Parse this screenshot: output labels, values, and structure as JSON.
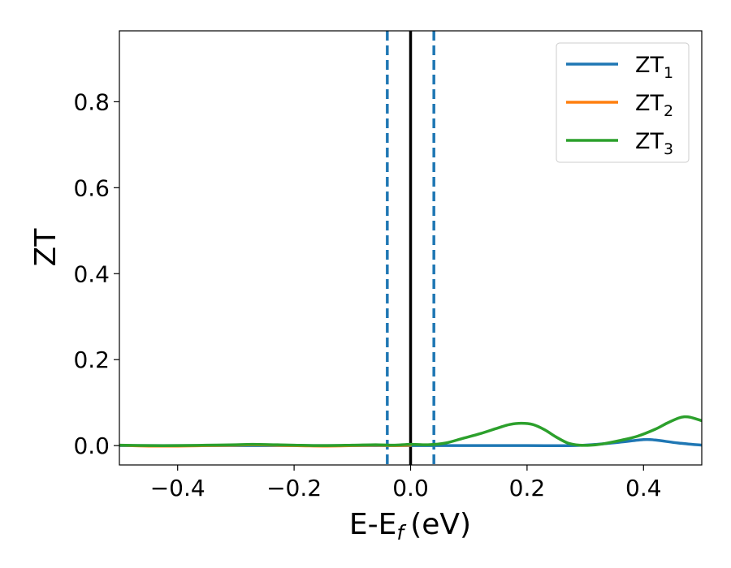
{
  "chart_data": {
    "type": "line",
    "xlabel": "E-E",
    "xlabel_sub": "f",
    "xlabel_unit": "(eV)",
    "ylabel": "ZT",
    "xlim": [
      -0.5,
      0.5
    ],
    "ylim": [
      -0.045,
      0.965
    ],
    "xticks": [
      -0.4,
      -0.2,
      0.0,
      0.2,
      0.4
    ],
    "xtick_labels": [
      "−0.4",
      "−0.2",
      "0.0",
      "0.2",
      "0.4"
    ],
    "yticks": [
      0.0,
      0.2,
      0.4,
      0.6,
      0.8
    ],
    "ytick_labels": [
      "0.0",
      "0.2",
      "0.4",
      "0.6",
      "0.8"
    ],
    "grid": false,
    "legend_position": "top-right",
    "vertical_lines": [
      {
        "x": -0.04,
        "style": "dashed",
        "color": "#1f77b4"
      },
      {
        "x": 0.0,
        "style": "solid",
        "color": "#000000"
      },
      {
        "x": 0.04,
        "style": "dashed",
        "color": "#1f77b4"
      }
    ],
    "series": [
      {
        "name": "ZT",
        "name_sub": "1",
        "color": "#1f77b4",
        "x": [
          -0.5,
          -0.4,
          -0.3,
          -0.2,
          -0.1,
          0.0,
          0.1,
          0.2,
          0.28,
          0.32,
          0.36,
          0.4,
          0.42,
          0.46,
          0.5
        ],
        "y": [
          0.0,
          0.0,
          0.0,
          0.0,
          0.0,
          0.0,
          0.0,
          0.0,
          0.0,
          0.003,
          0.008,
          0.014,
          0.013,
          0.006,
          0.001
        ]
      },
      {
        "name": "ZT",
        "name_sub": "2",
        "color": "#ff7f0e",
        "x": [
          -0.5,
          -0.45,
          -0.4,
          -0.35,
          -0.3,
          -0.27,
          -0.2,
          -0.15,
          -0.1,
          -0.06,
          -0.03,
          0.0
        ],
        "y": [
          0.001,
          -0.001,
          -0.001,
          0.0,
          0.001,
          0.002,
          0.0,
          -0.001,
          0.0,
          0.001,
          0.0,
          0.001
        ]
      },
      {
        "name": "ZT",
        "name_sub": "3",
        "color": "#2ca02c",
        "x": [
          -0.5,
          -0.45,
          -0.4,
          -0.35,
          -0.3,
          -0.27,
          -0.2,
          -0.15,
          -0.1,
          -0.06,
          -0.03,
          0.0,
          0.03,
          0.06,
          0.09,
          0.12,
          0.15,
          0.17,
          0.19,
          0.21,
          0.23,
          0.25,
          0.27,
          0.29,
          0.31,
          0.33,
          0.36,
          0.39,
          0.42,
          0.44,
          0.46,
          0.47,
          0.48,
          0.5
        ],
        "y": [
          0.001,
          0.0,
          0.0,
          0.001,
          0.002,
          0.003,
          0.001,
          0.0,
          0.001,
          0.002,
          0.001,
          0.003,
          0.002,
          0.006,
          0.017,
          0.028,
          0.041,
          0.049,
          0.052,
          0.049,
          0.037,
          0.02,
          0.006,
          0.001,
          0.001,
          0.004,
          0.012,
          0.022,
          0.038,
          0.052,
          0.064,
          0.067,
          0.066,
          0.058
        ]
      }
    ]
  }
}
